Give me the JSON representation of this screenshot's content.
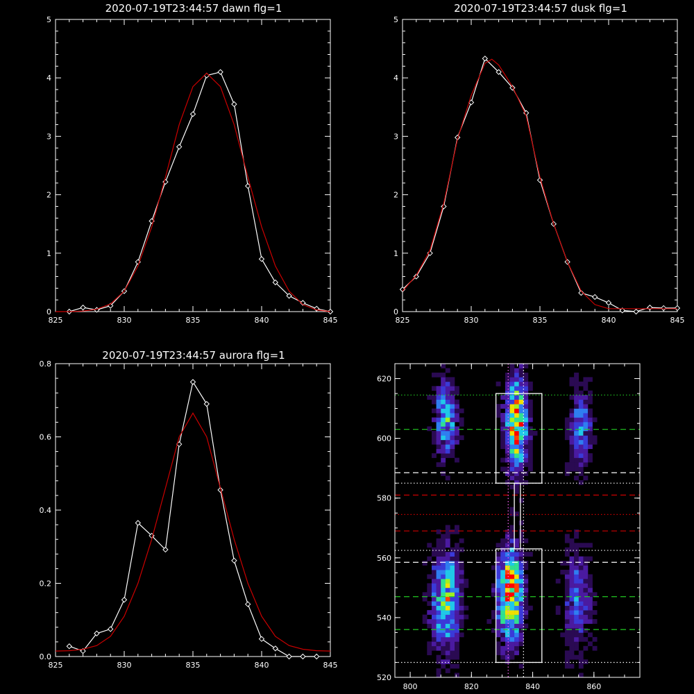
{
  "chart_data": [
    {
      "type": "line",
      "title": "2020-07-19T23:44:57 dawn flg=1",
      "xlim": [
        825,
        845
      ],
      "ylim": [
        0,
        5
      ],
      "xticks": [
        825,
        830,
        835,
        840,
        845
      ],
      "yticks": [
        0,
        1,
        2,
        3,
        4,
        5
      ],
      "series": [
        {
          "color": "#ffffff",
          "markers": "diamond",
          "x": [
            826,
            827,
            828,
            829,
            830,
            831,
            832,
            833,
            834,
            835,
            836,
            837,
            838,
            839,
            840,
            841,
            842,
            843,
            844,
            845
          ],
          "y": [
            0.0,
            0.07,
            0.03,
            0.1,
            0.35,
            0.85,
            1.55,
            2.22,
            2.82,
            3.38,
            4.04,
            4.1,
            3.55,
            2.15,
            0.9,
            0.5,
            0.27,
            0.15,
            0.05,
            0.0
          ]
        },
        {
          "color": "#cc0000",
          "x": [
            825,
            826,
            827,
            828,
            829,
            830,
            831,
            832,
            833,
            834,
            835,
            836,
            837,
            838,
            839,
            840,
            841,
            842,
            843,
            844,
            845
          ],
          "y": [
            0.0,
            0.0,
            0.01,
            0.04,
            0.13,
            0.35,
            0.78,
            1.45,
            2.3,
            3.2,
            3.85,
            4.08,
            3.85,
            3.2,
            2.3,
            1.45,
            0.78,
            0.35,
            0.12,
            0.03,
            0.0
          ]
        }
      ]
    },
    {
      "type": "line",
      "title": "2020-07-19T23:44:57 dusk flg=1",
      "xlim": [
        825,
        845
      ],
      "ylim": [
        0,
        5
      ],
      "xticks": [
        825,
        830,
        835,
        840,
        845
      ],
      "yticks": [
        0,
        1,
        2,
        3,
        4,
        5
      ],
      "series": [
        {
          "color": "#ffffff",
          "markers": "diamond",
          "x": [
            825,
            826,
            827,
            828,
            829,
            830,
            831,
            832,
            833,
            834,
            835,
            836,
            837,
            838,
            839,
            840,
            841,
            842,
            843,
            844,
            845
          ],
          "y": [
            0.38,
            0.6,
            1.0,
            1.8,
            2.98,
            3.58,
            4.33,
            4.1,
            3.83,
            3.4,
            2.25,
            1.5,
            0.85,
            0.32,
            0.25,
            0.15,
            0.02,
            0.0,
            0.07,
            0.06,
            0.06
          ]
        },
        {
          "color": "#cc0000",
          "x": [
            825,
            826,
            827,
            828,
            829,
            830,
            831,
            831.5,
            832,
            833,
            834,
            835,
            836,
            837,
            838,
            839,
            840,
            841,
            842,
            843,
            844,
            845
          ],
          "y": [
            0.35,
            0.62,
            1.05,
            1.85,
            2.95,
            3.7,
            4.25,
            4.32,
            4.22,
            3.85,
            3.35,
            2.3,
            1.5,
            0.85,
            0.35,
            0.12,
            0.05,
            0.05,
            0.05,
            0.05,
            0.05,
            0.05
          ]
        }
      ]
    },
    {
      "type": "line",
      "title": "2020-07-19T23:44:57 aurora flg=1",
      "xlim": [
        825,
        845
      ],
      "ylim": [
        0,
        0.8
      ],
      "xticks": [
        825,
        830,
        835,
        840,
        845
      ],
      "yticks": [
        0.0,
        0.2,
        0.4,
        0.6,
        0.8
      ],
      "series": [
        {
          "color": "#ffffff",
          "markers": "diamond",
          "x": [
            826,
            827,
            828,
            829,
            830,
            831,
            832,
            833,
            834,
            835,
            836,
            837,
            838,
            839,
            840,
            841,
            842,
            843,
            844
          ],
          "y": [
            0.028,
            0.015,
            0.063,
            0.075,
            0.155,
            0.365,
            0.33,
            0.292,
            0.58,
            0.75,
            0.69,
            0.455,
            0.262,
            0.143,
            0.048,
            0.022,
            0.0,
            0.0,
            0.0
          ]
        },
        {
          "color": "#cc0000",
          "x": [
            825,
            826,
            827,
            828,
            829,
            830,
            831,
            832,
            833,
            834,
            835,
            836,
            837,
            838,
            839,
            840,
            841,
            842,
            843,
            844,
            845
          ],
          "y": [
            0.015,
            0.016,
            0.02,
            0.03,
            0.055,
            0.11,
            0.2,
            0.32,
            0.46,
            0.6,
            0.665,
            0.6,
            0.46,
            0.32,
            0.2,
            0.11,
            0.055,
            0.03,
            0.02,
            0.016,
            0.015
          ]
        }
      ]
    },
    {
      "type": "heatmap",
      "xlim": [
        795,
        875
      ],
      "ylim": [
        520,
        625
      ],
      "xticks": [
        800,
        820,
        840,
        860
      ],
      "yticks": [
        520,
        540,
        560,
        580,
        600,
        620
      ],
      "colormap": [
        "#000000",
        "#2a0a52",
        "#4a1aa0",
        "#3a3ad8",
        "#2f7ef0",
        "#20c8e8",
        "#30e090",
        "#a0f020",
        "#f0e000",
        "#ff4000",
        "#ff0000"
      ],
      "blobs": [
        {
          "x": 811,
          "y": 606,
          "sx": 2.2,
          "sy": 8,
          "peak": 0.55
        },
        {
          "x": 811,
          "y": 545,
          "sx": 3,
          "sy": 11,
          "peak": 0.62
        },
        {
          "x": 834,
          "y": 604,
          "sx": 2.4,
          "sy": 10,
          "peak": 0.85
        },
        {
          "x": 832,
          "y": 547,
          "sx": 2.6,
          "sy": 10,
          "peak": 0.95
        },
        {
          "x": 855,
          "y": 603,
          "sx": 2.5,
          "sy": 9,
          "peak": 0.35
        },
        {
          "x": 854,
          "y": 545,
          "sx": 2.8,
          "sy": 11,
          "peak": 0.33
        }
      ],
      "boxes": [
        {
          "x0": 828,
          "x1": 843,
          "y0": 585,
          "y1": 615,
          "color": "#ffffff"
        },
        {
          "x0": 828,
          "x1": 843,
          "y0": 525,
          "y1": 563,
          "color": "#ffffff"
        },
        {
          "x0": 834,
          "x1": 836,
          "y0": 563,
          "y1": 585,
          "color": "#ffffff"
        }
      ],
      "hlines": [
        {
          "y": 614.5,
          "color": "#22cc22",
          "style": "dotted"
        },
        {
          "y": 603,
          "color": "#22cc22",
          "style": "dashed"
        },
        {
          "y": 588.5,
          "color": "#ffffff",
          "style": "dashed"
        },
        {
          "y": 585,
          "color": "#ffffff",
          "style": "dotted"
        },
        {
          "y": 581,
          "color": "#cc0000",
          "style": "dashed"
        },
        {
          "y": 574.5,
          "color": "#cc0000",
          "style": "dotted"
        },
        {
          "y": 569,
          "color": "#cc0000",
          "style": "dashed"
        },
        {
          "y": 562.5,
          "color": "#ffffff",
          "style": "dotted"
        },
        {
          "y": 558.5,
          "color": "#ffffff",
          "style": "dashed"
        },
        {
          "y": 547,
          "color": "#22cc22",
          "style": "dashed"
        },
        {
          "y": 536,
          "color": "#22cc22",
          "style": "dashed"
        },
        {
          "y": 525,
          "color": "#ffffff",
          "style": "dotted"
        }
      ],
      "vlines": [
        {
          "x": 832,
          "color": "#ff66ff",
          "style": "dotted"
        },
        {
          "x": 837,
          "color": "#ffffff",
          "style": "dotted"
        }
      ]
    }
  ]
}
